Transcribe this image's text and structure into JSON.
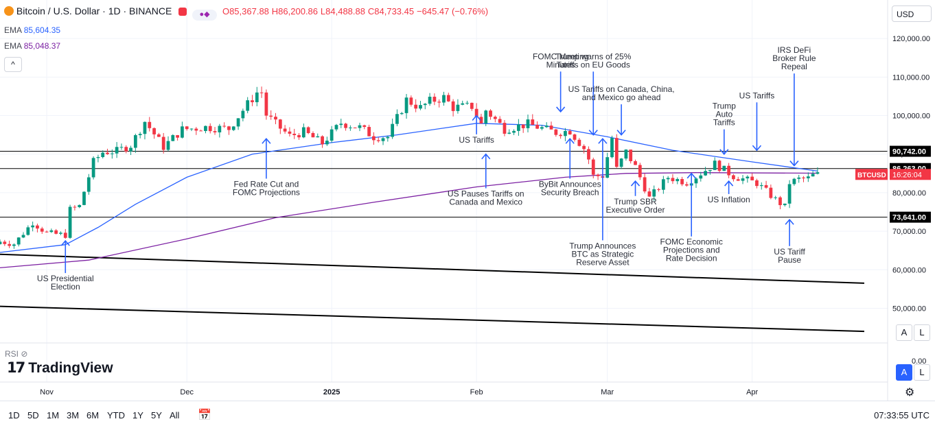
{
  "header": {
    "symbol": "Bitcoin / U.S. Dollar · 1D · BINANCE",
    "open": "O85,367.88",
    "high": "H86,200.86",
    "low": "L84,488.88",
    "close": "C84,733.45",
    "change": "−645.47 (−0.76%)",
    "icons": [
      "bitcoin-logo-icon",
      "market-closed-icon",
      "indicator-dots-icon"
    ]
  },
  "indicators": [
    {
      "name": "EMA",
      "value": "85,604.35",
      "color": "#2962ff"
    },
    {
      "name": "EMA",
      "value": "85,048.37",
      "color": "#7b1fa2"
    }
  ],
  "collapse_label": "^",
  "currency_select": "USD",
  "rsi_label": "RSI",
  "logo_text": "TradingView",
  "bottom_bar": {
    "timeframes": [
      "1D",
      "5D",
      "1M",
      "3M",
      "6M",
      "YTD",
      "1Y",
      "5Y",
      "All"
    ],
    "clock": "07:33:55 UTC"
  },
  "scale_buttons": {
    "auto": "A",
    "log": "L"
  },
  "colors": {
    "up": "#089981",
    "down": "#f23645",
    "ema_fast": "#2962ff",
    "ema_slow": "#7b1fa2",
    "level": "#000000"
  },
  "chart_data": {
    "type": "candlestick",
    "symbol": "BTCUSD",
    "price_scale": [
      "120,000.00",
      "110,000.00",
      "100,000.00",
      "90,000.00",
      "80,000.00",
      "70,000.00",
      "60,000.00",
      "50,000.00"
    ],
    "price_scale_values": [
      120000,
      110000,
      100000,
      90000,
      80000,
      70000,
      60000,
      50000
    ],
    "time_axis": [
      "Nov",
      "Dec",
      "2025",
      "Feb",
      "Mar",
      "Apr"
    ],
    "time_axis_dates": [
      "2024-11-01",
      "2024-12-01",
      "2025-01-01",
      "2025-02-01",
      "2025-03-01",
      "2025-04-01"
    ],
    "x_range": [
      "2024-10-22",
      "2025-04-30"
    ],
    "ylim": [
      41000,
      130000
    ],
    "rsi_pane_tick": "0.00",
    "horizontal_levels": [
      {
        "value": 90742,
        "label": "90,742.00"
      },
      {
        "value": 86263,
        "label": "86,263.00"
      },
      {
        "value": 73641,
        "label": "73,641.00"
      }
    ],
    "current_price_tag": {
      "symbol": "BTCUSD",
      "countdown": "16:26:04",
      "value": 84733.45
    },
    "trend_lines": [
      {
        "from": [
          "2024-10-22",
          64000
        ],
        "to": [
          "2025-04-25",
          56500
        ]
      },
      {
        "from": [
          "2024-10-22",
          50500
        ],
        "to": [
          "2025-04-25",
          44000
        ]
      }
    ],
    "closes": [
      [
        "2024-10-22",
        67300
      ],
      [
        "2024-10-25",
        66700
      ],
      [
        "2024-10-29",
        72300
      ],
      [
        "2024-11-01",
        69500
      ],
      [
        "2024-11-05",
        69000
      ],
      [
        "2024-11-06",
        75600
      ],
      [
        "2024-11-08",
        76500
      ],
      [
        "2024-11-11",
        88000
      ],
      [
        "2024-11-13",
        90500
      ],
      [
        "2024-11-16",
        90800
      ],
      [
        "2024-11-19",
        92300
      ],
      [
        "2024-11-22",
        98500
      ],
      [
        "2024-11-26",
        91900
      ],
      [
        "2024-11-30",
        96400
      ],
      [
        "2024-12-05",
        97000
      ],
      [
        "2024-12-10",
        96600
      ],
      [
        "2024-12-13",
        101400
      ],
      [
        "2024-12-16",
        106000
      ],
      [
        "2024-12-17",
        106100
      ],
      [
        "2024-12-18",
        100200
      ],
      [
        "2024-12-20",
        97800
      ],
      [
        "2024-12-23",
        94700
      ],
      [
        "2024-12-26",
        95800
      ],
      [
        "2024-12-30",
        92800
      ],
      [
        "2025-01-03",
        98100
      ],
      [
        "2025-01-07",
        96900
      ],
      [
        "2025-01-10",
        94500
      ],
      [
        "2025-01-13",
        94500
      ],
      [
        "2025-01-17",
        104100
      ],
      [
        "2025-01-20",
        102000
      ],
      [
        "2025-01-22",
        103700
      ],
      [
        "2025-01-25",
        104700
      ],
      [
        "2025-01-27",
        102100
      ],
      [
        "2025-01-31",
        102400
      ],
      [
        "2025-02-02",
        97700
      ],
      [
        "2025-02-03",
        101400
      ],
      [
        "2025-02-07",
        96500
      ],
      [
        "2025-02-12",
        97800
      ],
      [
        "2025-02-18",
        95600
      ],
      [
        "2025-02-21",
        96100
      ],
      [
        "2025-02-24",
        91500
      ],
      [
        "2025-02-25",
        88700
      ],
      [
        "2025-02-26",
        84300
      ],
      [
        "2025-02-28",
        84400
      ],
      [
        "2025-03-02",
        94200
      ],
      [
        "2025-03-03",
        86100
      ],
      [
        "2025-03-05",
        90600
      ],
      [
        "2025-03-07",
        86700
      ],
      [
        "2025-03-10",
        78600
      ],
      [
        "2025-03-14",
        84000
      ],
      [
        "2025-03-18",
        82700
      ],
      [
        "2025-03-20",
        84200
      ],
      [
        "2025-03-24",
        87500
      ],
      [
        "2025-03-28",
        84300
      ],
      [
        "2025-04-02",
        82500
      ],
      [
        "2025-04-06",
        78200
      ],
      [
        "2025-04-08",
        76300
      ],
      [
        "2025-04-09",
        82600
      ],
      [
        "2025-04-11",
        83500
      ],
      [
        "2025-04-13",
        83700
      ],
      [
        "2025-04-14",
        84500
      ],
      [
        "2025-04-15",
        84700
      ]
    ],
    "series": [
      {
        "name": "EMA",
        "color": "#2962ff",
        "values": [
          [
            "2024-10-22",
            64500
          ],
          [
            "2024-11-05",
            66500
          ],
          [
            "2024-11-12",
            71000
          ],
          [
            "2024-11-20",
            77000
          ],
          [
            "2024-12-01",
            84000
          ],
          [
            "2024-12-15",
            90000
          ],
          [
            "2025-01-01",
            93000
          ],
          [
            "2025-01-15",
            95000
          ],
          [
            "2025-02-01",
            98000
          ],
          [
            "2025-02-15",
            97500
          ],
          [
            "2025-03-01",
            94500
          ],
          [
            "2025-03-15",
            91000
          ],
          [
            "2025-04-01",
            88000
          ],
          [
            "2025-04-15",
            85604
          ]
        ]
      },
      {
        "name": "EMA",
        "color": "#7b1fa2",
        "values": [
          [
            "2024-10-22",
            60500
          ],
          [
            "2024-11-10",
            62500
          ],
          [
            "2024-12-01",
            68000
          ],
          [
            "2024-12-20",
            73500
          ],
          [
            "2025-01-10",
            77500
          ],
          [
            "2025-02-01",
            81500
          ],
          [
            "2025-02-20",
            84000
          ],
          [
            "2025-03-05",
            85000
          ],
          [
            "2025-03-20",
            85200
          ],
          [
            "2025-04-15",
            85048
          ]
        ]
      }
    ],
    "annotations": [
      {
        "text": [
          "US Presidential",
          "Election"
        ],
        "date": "2024-11-05",
        "label_price": 57000,
        "arrow_to": 67500,
        "dir": "up"
      },
      {
        "text": [
          "Fed Rate Cut and",
          "FOMC Projections"
        ],
        "date": "2024-12-18",
        "label_price": 81500,
        "arrow_to": 94000,
        "dir": "up"
      },
      {
        "text": [
          "US Tariffs"
        ],
        "date": "2025-02-01",
        "label_price": 93000,
        "arrow_to": 100000,
        "dir": "up"
      },
      {
        "text": [
          "US Pauses Tariffs on",
          "Canada and Mexico"
        ],
        "date": "2025-02-03",
        "label_price": 79000,
        "arrow_to": 90000,
        "dir": "up"
      },
      {
        "text": [
          "FOMC Meeting",
          "Minutes"
        ],
        "date": "2025-02-19",
        "label_price": 112500,
        "arrow_to": 101000,
        "dir": "down"
      },
      {
        "text": [
          "Trump warns of 25%",
          "Tariffs on EU Goods"
        ],
        "date": "2025-02-26",
        "label_price": 112500,
        "arrow_to": 95000,
        "dir": "down"
      },
      {
        "text": [
          "ByBit Announces",
          "Security Breach"
        ],
        "date": "2025-02-21",
        "label_price": 81500,
        "arrow_to": 94000,
        "dir": "up"
      },
      {
        "text": [
          "US Tariffs on Canada, China,",
          "and Mexico go ahead"
        ],
        "date": "2025-03-04",
        "label_price": 104000,
        "arrow_to": 95000,
        "dir": "down"
      },
      {
        "text": [
          "Trump Announces",
          "BTC as Strategic",
          "Reserve Asset"
        ],
        "date": "2025-02-28",
        "label_price": 65500,
        "arrow_to": 94000,
        "dir": "up"
      },
      {
        "text": [
          "Trump SBR",
          "Executive Order"
        ],
        "date": "2025-03-07",
        "label_price": 77000,
        "arrow_to": 83000,
        "dir": "up"
      },
      {
        "text": [
          "FOMC Economic",
          "Projections and",
          "Rate Decision"
        ],
        "date": "2025-03-19",
        "label_price": 66500,
        "arrow_to": 85000,
        "dir": "up"
      },
      {
        "text": [
          "Trump",
          "Auto",
          "Tariffs"
        ],
        "date": "2025-03-26",
        "label_price": 97500,
        "arrow_to": 90000,
        "dir": "down"
      },
      {
        "text": [
          "US Tariffs"
        ],
        "date": "2025-04-02",
        "label_price": 104500,
        "arrow_to": 91000,
        "dir": "down"
      },
      {
        "text": [
          "US Inflation"
        ],
        "date": "2025-03-27",
        "label_price": 77500,
        "arrow_to": 83000,
        "dir": "up"
      },
      {
        "text": [
          "IRS DeFi",
          "Broker Rule",
          "Repeal"
        ],
        "date": "2025-04-10",
        "label_price": 112000,
        "arrow_to": 87000,
        "dir": "down"
      },
      {
        "text": [
          "US Tariff",
          "Pause"
        ],
        "date": "2025-04-09",
        "label_price": 64000,
        "arrow_to": 73000,
        "dir": "up"
      }
    ]
  }
}
